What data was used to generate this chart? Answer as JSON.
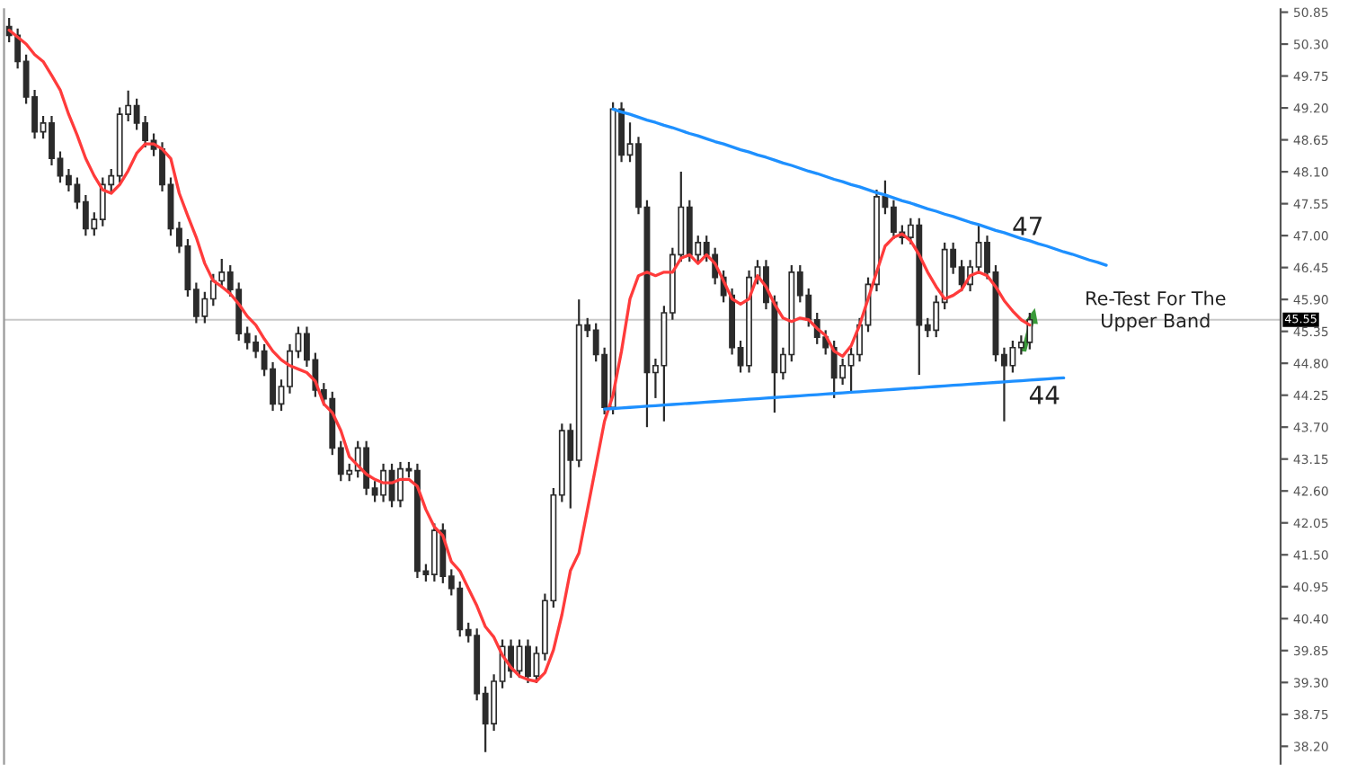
{
  "chart_data": {
    "type": "candlestick",
    "categories": [
      null,
      null,
      null,
      null,
      null,
      null,
      null,
      null,
      null,
      null,
      null,
      null,
      null,
      null,
      null,
      null,
      null,
      null,
      null,
      null,
      null,
      null,
      null,
      null,
      null,
      null,
      null,
      null,
      null,
      null,
      null,
      null,
      null,
      null,
      null,
      null,
      null,
      null,
      null,
      null,
      null,
      null,
      null,
      null,
      null,
      null,
      null,
      null,
      null,
      null,
      null,
      null,
      null,
      null,
      null,
      null,
      null,
      null,
      null,
      null,
      null,
      null,
      null,
      null,
      null,
      null,
      null,
      null,
      null,
      null,
      null,
      null,
      null,
      null,
      null,
      null,
      null,
      null,
      null,
      null,
      null,
      null,
      null,
      null,
      null,
      null,
      null,
      null,
      null,
      null,
      null,
      null,
      null,
      null,
      null,
      null,
      null,
      null,
      null,
      null,
      null,
      null,
      null,
      null,
      null,
      null,
      null,
      null,
      null,
      null,
      null,
      null,
      null,
      null,
      null,
      null,
      null,
      null,
      null,
      null,
      null,
      null,
      null,
      null,
      null,
      null,
      null,
      null,
      null,
      null,
      null,
      null,
      null,
      null,
      null,
      null,
      null,
      null,
      null,
      null,
      null,
      null,
      null,
      null,
      null,
      null,
      null,
      null,
      null,
      null
    ],
    "color": "#2b2b2b",
    "ohlc": [
      [
        50.6,
        50.75,
        50.33,
        50.45
      ],
      [
        50.45,
        50.57,
        49.88,
        50.0
      ],
      [
        50.0,
        50.12,
        49.27,
        49.39
      ],
      [
        49.39,
        49.51,
        48.67,
        48.79
      ],
      [
        48.79,
        49.06,
        48.67,
        48.94
      ],
      [
        48.94,
        49.06,
        48.21,
        48.33
      ],
      [
        48.33,
        48.45,
        47.91,
        48.03
      ],
      [
        48.03,
        48.15,
        47.76,
        47.88
      ],
      [
        47.88,
        48.0,
        47.46,
        47.58
      ],
      [
        47.58,
        47.7,
        47.0,
        47.12
      ],
      [
        47.12,
        47.4,
        47.0,
        47.28
      ],
      [
        47.28,
        48.0,
        47.16,
        47.88
      ],
      [
        47.88,
        48.15,
        47.76,
        48.03
      ],
      [
        48.03,
        49.21,
        47.91,
        49.09
      ],
      [
        49.09,
        49.5,
        48.97,
        49.24
      ],
      [
        49.24,
        49.36,
        48.82,
        48.94
      ],
      [
        48.94,
        49.06,
        48.52,
        48.64
      ],
      [
        48.64,
        48.76,
        48.37,
        48.49
      ],
      [
        48.49,
        48.61,
        47.76,
        47.88
      ],
      [
        47.88,
        48.0,
        47.0,
        47.12
      ],
      [
        47.12,
        47.24,
        46.7,
        46.82
      ],
      [
        46.82,
        46.94,
        45.95,
        46.07
      ],
      [
        46.07,
        46.19,
        45.49,
        45.61
      ],
      [
        45.61,
        46.03,
        45.49,
        45.91
      ],
      [
        45.91,
        46.34,
        45.79,
        46.22
      ],
      [
        46.22,
        46.6,
        46.1,
        46.37
      ],
      [
        46.37,
        46.49,
        45.95,
        46.07
      ],
      [
        46.07,
        46.19,
        45.19,
        45.31
      ],
      [
        45.31,
        45.43,
        45.04,
        45.16
      ],
      [
        45.16,
        45.28,
        44.89,
        45.01
      ],
      [
        45.01,
        45.13,
        44.58,
        44.7
      ],
      [
        44.7,
        44.82,
        43.98,
        44.1
      ],
      [
        44.1,
        44.52,
        43.98,
        44.4
      ],
      [
        44.4,
        45.13,
        44.28,
        45.01
      ],
      [
        45.01,
        45.43,
        44.89,
        45.31
      ],
      [
        45.31,
        45.43,
        44.74,
        44.86
      ],
      [
        44.86,
        44.98,
        44.22,
        44.34
      ],
      [
        44.34,
        44.46,
        44.07,
        44.19
      ],
      [
        44.19,
        44.31,
        43.22,
        43.34
      ],
      [
        43.34,
        43.46,
        42.77,
        42.89
      ],
      [
        42.89,
        43.07,
        42.77,
        42.95
      ],
      [
        42.95,
        43.46,
        42.83,
        43.34
      ],
      [
        43.34,
        43.46,
        42.53,
        42.65
      ],
      [
        42.65,
        42.77,
        42.41,
        42.53
      ],
      [
        42.53,
        43.07,
        42.41,
        42.95
      ],
      [
        42.95,
        43.07,
        42.32,
        42.44
      ],
      [
        42.44,
        43.1,
        42.32,
        42.98
      ],
      [
        42.98,
        43.1,
        42.83,
        42.95
      ],
      [
        42.95,
        43.07,
        41.1,
        41.22
      ],
      [
        41.22,
        41.34,
        41.04,
        41.16
      ],
      [
        41.16,
        42.04,
        41.04,
        41.92
      ],
      [
        41.92,
        42.04,
        41.01,
        41.13
      ],
      [
        41.13,
        41.25,
        40.8,
        40.92
      ],
      [
        40.92,
        41.04,
        40.09,
        40.21
      ],
      [
        40.21,
        40.33,
        39.99,
        40.11
      ],
      [
        40.11,
        40.23,
        38.99,
        39.11
      ],
      [
        39.11,
        39.23,
        38.1,
        38.59
      ],
      [
        38.59,
        39.44,
        38.47,
        39.32
      ],
      [
        39.32,
        40.04,
        39.2,
        39.92
      ],
      [
        39.92,
        40.04,
        39.38,
        39.5
      ],
      [
        39.5,
        40.04,
        39.38,
        39.92
      ],
      [
        39.92,
        40.04,
        39.29,
        39.41
      ],
      [
        39.41,
        39.92,
        39.29,
        39.8
      ],
      [
        39.8,
        40.83,
        39.68,
        40.71
      ],
      [
        40.71,
        42.65,
        40.59,
        42.53
      ],
      [
        42.53,
        43.76,
        42.41,
        43.64
      ],
      [
        43.64,
        43.76,
        42.3,
        43.13
      ],
      [
        43.13,
        45.9,
        43.01,
        45.46
      ],
      [
        45.46,
        45.58,
        45.25,
        45.37
      ],
      [
        45.37,
        45.49,
        44.83,
        44.95
      ],
      [
        44.95,
        45.07,
        43.92,
        44.04
      ],
      [
        44.04,
        49.3,
        43.92,
        49.18
      ],
      [
        49.18,
        49.3,
        48.27,
        48.39
      ],
      [
        48.39,
        48.95,
        48.27,
        48.58
      ],
      [
        48.58,
        48.7,
        47.37,
        47.49
      ],
      [
        47.49,
        47.61,
        43.7,
        44.64
      ],
      [
        44.64,
        44.88,
        44.2,
        44.76
      ],
      [
        44.76,
        45.79,
        43.8,
        45.67
      ],
      [
        45.67,
        46.79,
        45.55,
        46.67
      ],
      [
        46.67,
        48.1,
        46.55,
        47.49
      ],
      [
        47.49,
        47.61,
        46.55,
        46.67
      ],
      [
        46.67,
        47.0,
        46.55,
        46.88
      ],
      [
        46.88,
        47.0,
        46.55,
        46.67
      ],
      [
        46.67,
        46.79,
        46.16,
        46.28
      ],
      [
        46.28,
        46.4,
        45.85,
        45.97
      ],
      [
        45.97,
        46.09,
        44.95,
        45.07
      ],
      [
        45.07,
        45.19,
        44.64,
        44.76
      ],
      [
        44.76,
        46.4,
        44.64,
        46.28
      ],
      [
        46.28,
        46.58,
        46.16,
        46.46
      ],
      [
        46.46,
        46.58,
        45.73,
        45.85
      ],
      [
        45.85,
        45.97,
        43.95,
        44.64
      ],
      [
        44.64,
        45.07,
        44.52,
        44.95
      ],
      [
        44.95,
        46.49,
        44.83,
        46.37
      ],
      [
        46.37,
        46.49,
        45.85,
        45.97
      ],
      [
        45.97,
        46.09,
        45.43,
        45.55
      ],
      [
        45.55,
        45.67,
        45.13,
        45.25
      ],
      [
        45.25,
        45.37,
        44.95,
        45.07
      ],
      [
        45.07,
        45.19,
        44.2,
        44.55
      ],
      [
        44.55,
        44.88,
        44.43,
        44.76
      ],
      [
        44.76,
        45.07,
        44.3,
        44.95
      ],
      [
        44.95,
        45.58,
        44.83,
        45.46
      ],
      [
        45.46,
        46.28,
        45.34,
        46.16
      ],
      [
        46.16,
        47.79,
        46.04,
        47.67
      ],
      [
        47.67,
        47.95,
        47.37,
        47.49
      ],
      [
        47.49,
        47.61,
        46.94,
        47.06
      ],
      [
        47.06,
        47.18,
        46.85,
        46.97
      ],
      [
        46.97,
        47.3,
        46.85,
        47.18
      ],
      [
        47.18,
        47.3,
        44.6,
        45.46
      ],
      [
        45.46,
        45.58,
        45.25,
        45.37
      ],
      [
        45.37,
        45.97,
        45.25,
        45.85
      ],
      [
        45.85,
        46.88,
        45.73,
        46.76
      ],
      [
        46.76,
        46.88,
        46.34,
        46.46
      ],
      [
        46.46,
        46.58,
        46.04,
        46.16
      ],
      [
        46.16,
        46.58,
        46.04,
        46.46
      ],
      [
        46.46,
        47.2,
        46.34,
        46.88
      ],
      [
        46.88,
        47.0,
        46.25,
        46.37
      ],
      [
        46.37,
        46.49,
        44.83,
        44.95
      ],
      [
        44.95,
        45.07,
        43.8,
        44.76
      ],
      [
        44.76,
        45.19,
        44.64,
        45.07
      ],
      [
        45.07,
        45.28,
        44.95,
        45.16
      ],
      [
        45.16,
        45.67,
        45.04,
        45.55
      ],
      null,
      null,
      null,
      null,
      null,
      null,
      null,
      null,
      null,
      null,
      null,
      null,
      null,
      null,
      null,
      null,
      null,
      null,
      null,
      null,
      null,
      null,
      null,
      null,
      null,
      null,
      null,
      null,
      null
    ],
    "series": [
      {
        "type": "line",
        "color": "#ff3b3b",
        "values": [
          50.54,
          50.42,
          50.3,
          50.12,
          50.0,
          49.76,
          49.51,
          49.09,
          48.73,
          48.33,
          48.03,
          47.79,
          47.73,
          47.88,
          48.12,
          48.42,
          48.58,
          48.58,
          48.49,
          48.33,
          47.73,
          47.34,
          46.97,
          46.52,
          46.22,
          46.12,
          46.0,
          45.82,
          45.61,
          45.46,
          45.22,
          45.01,
          44.86,
          44.76,
          44.7,
          44.64,
          44.49,
          44.1,
          43.95,
          43.64,
          43.19,
          43.04,
          42.89,
          42.8,
          42.74,
          42.74,
          42.8,
          42.8,
          42.68,
          42.28,
          41.98,
          41.83,
          41.38,
          41.22,
          40.92,
          40.62,
          40.26,
          40.08,
          39.77,
          39.56,
          39.41,
          39.35,
          39.32,
          39.47,
          39.86,
          40.47,
          41.23,
          41.53,
          42.28,
          43.04,
          43.8,
          44.25,
          45.01,
          45.91,
          46.31,
          46.37,
          46.31,
          46.37,
          46.37,
          46.61,
          46.67,
          46.52,
          46.67,
          46.52,
          46.22,
          45.91,
          45.82,
          45.91,
          46.31,
          46.12,
          45.82,
          45.58,
          45.52,
          45.58,
          45.55,
          45.4,
          45.28,
          45.01,
          44.92,
          45.1,
          45.46,
          45.91,
          46.37,
          46.82,
          46.97,
          47.03,
          46.91,
          46.67,
          46.37,
          46.12,
          45.91,
          45.97,
          46.07,
          46.31,
          46.37,
          46.31,
          46.12,
          45.88,
          45.7,
          45.55,
          45.46,
          null,
          null,
          null,
          null,
          null,
          null,
          null,
          null,
          null,
          null,
          null,
          null,
          null,
          null,
          null,
          null,
          null,
          null,
          null,
          null,
          null,
          null,
          null,
          null,
          null,
          null,
          null,
          null,
          null
        ]
      },
      {
        "type": "line",
        "color": "#1e90ff",
        "values": [
          null,
          null,
          null,
          null,
          null,
          null,
          null,
          null,
          null,
          null,
          null,
          null,
          null,
          null,
          null,
          null,
          null,
          null,
          null,
          null,
          null,
          null,
          null,
          null,
          null,
          null,
          null,
          null,
          null,
          null,
          null,
          null,
          null,
          null,
          null,
          null,
          null,
          null,
          null,
          null,
          null,
          null,
          null,
          null,
          null,
          null,
          null,
          null,
          null,
          null,
          null,
          null,
          null,
          null,
          null,
          null,
          null,
          null,
          null,
          null,
          null,
          null,
          null,
          null,
          null,
          null,
          null,
          null,
          null,
          null,
          null,
          49.18,
          49.13,
          49.09,
          49.04,
          48.99,
          48.95,
          48.9,
          48.86,
          48.81,
          48.76,
          48.72,
          48.67,
          48.62,
          48.58,
          48.53,
          48.48,
          48.44,
          48.39,
          48.35,
          48.3,
          48.25,
          48.21,
          48.16,
          48.11,
          48.07,
          48.02,
          47.97,
          47.93,
          47.88,
          47.84,
          47.79,
          47.74,
          47.7,
          47.65,
          47.6,
          47.56,
          47.51,
          47.46,
          47.42,
          47.37,
          47.33,
          47.28,
          47.23,
          47.19,
          47.14,
          47.09,
          47.05,
          47.0,
          46.95,
          46.91,
          46.86,
          46.82,
          46.77,
          46.72,
          46.68,
          46.63,
          46.58,
          46.54,
          46.49,
          null,
          null,
          null,
          null,
          null,
          null,
          null,
          null,
          null,
          null,
          null,
          null,
          null,
          null,
          null,
          null,
          null,
          null,
          null,
          null
        ]
      },
      {
        "type": "line",
        "color": "#1e90ff",
        "values": [
          null,
          null,
          null,
          null,
          null,
          null,
          null,
          null,
          null,
          null,
          null,
          null,
          null,
          null,
          null,
          null,
          null,
          null,
          null,
          null,
          null,
          null,
          null,
          null,
          null,
          null,
          null,
          null,
          null,
          null,
          null,
          null,
          null,
          null,
          null,
          null,
          null,
          null,
          null,
          null,
          null,
          null,
          null,
          null,
          null,
          null,
          null,
          null,
          null,
          null,
          null,
          null,
          null,
          null,
          null,
          null,
          null,
          null,
          null,
          null,
          null,
          null,
          null,
          null,
          null,
          null,
          null,
          null,
          null,
          null,
          44.01,
          44.02,
          44.03,
          44.04,
          44.05,
          44.06,
          44.07,
          44.08,
          44.09,
          44.1,
          44.11,
          44.12,
          44.13,
          44.14,
          44.15,
          44.16,
          44.17,
          44.18,
          44.19,
          44.2,
          44.21,
          44.22,
          44.23,
          44.24,
          44.25,
          44.26,
          44.27,
          44.28,
          44.29,
          44.3,
          44.31,
          44.32,
          44.33,
          44.34,
          44.35,
          44.36,
          44.37,
          44.38,
          44.39,
          44.4,
          44.41,
          44.42,
          44.43,
          44.44,
          44.45,
          44.46,
          44.47,
          44.48,
          44.49,
          44.5,
          44.51,
          44.52,
          44.53,
          44.54,
          44.55,
          null,
          null,
          null,
          null,
          null,
          null,
          null,
          null,
          null,
          null,
          null,
          null,
          null,
          null,
          null,
          null,
          null,
          null,
          null,
          null,
          null,
          null,
          null,
          null,
          null
        ]
      }
    ],
    "ylim": [
      37.9,
      50.9
    ],
    "yticks": [
      50.85,
      {
        "value": 50.3,
        "label": "50.30"
      },
      49.75,
      {
        "value": 49.2,
        "label": "49.20"
      },
      48.65,
      {
        "value": 48.1,
        "label": "48.10"
      },
      47.55,
      {
        "value": 47.0,
        "label": "47.00"
      },
      46.45,
      {
        "value": 45.9,
        "label": "45.90"
      },
      45.35,
      {
        "value": 44.8,
        "label": "44.80"
      },
      44.25,
      {
        "value": 43.7,
        "label": "43.70"
      },
      43.15,
      {
        "value": 42.6,
        "label": "42.60"
      },
      42.05,
      {
        "value": 41.5,
        "label": "41.50"
      },
      40.95,
      {
        "value": 40.4,
        "label": "40.40"
      },
      39.85,
      {
        "value": 39.3,
        "label": "39.30"
      },
      38.75,
      {
        "value": 38.2,
        "label": "38.20"
      }
    ],
    "tick_labels": "y",
    "grid": false,
    "ref_lines": [
      {
        "axis": "y",
        "value": 45.55,
        "label": "45.55",
        "color": "#c8c8c8"
      }
    ],
    "annotations": [
      "47",
      "44",
      "Re-Test For The\nUpper Band"
    ]
  }
}
